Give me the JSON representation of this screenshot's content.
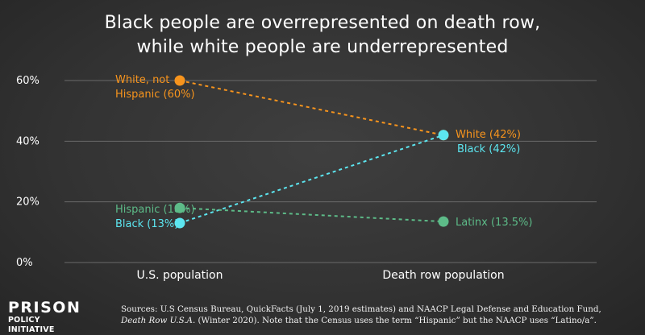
{
  "title_line1": "Black people are overrepresented on death row,",
  "title_line2": "while white people are underrepresented",
  "chart_data": {
    "type": "line",
    "title": "Black people are overrepresented on death row, while white people are underrepresented",
    "categories": [
      "U.S. population",
      "Death row population"
    ],
    "ylim": [
      0,
      60
    ],
    "yticks": [
      "0%",
      "20%",
      "40%",
      "60%"
    ],
    "ytick_values": [
      0,
      20,
      40,
      60
    ],
    "grid": true,
    "series": [
      {
        "color": "#f7941d",
        "values": [
          60,
          42
        ],
        "labels": [
          "White, not\nHispanic (60%)",
          "White (42%)"
        ]
      },
      {
        "color": "#5ce6f0",
        "values": [
          13,
          42
        ],
        "labels": [
          "Black (13%)",
          "Black (42%)"
        ]
      },
      {
        "color": "#5dbb88",
        "values": [
          18,
          13.5
        ],
        "labels": [
          "Hispanic (18%)",
          "Latinx (13.5%)"
        ]
      }
    ]
  },
  "logo": {
    "line1": "PRISON",
    "line2": "POLICY INITIATIVE"
  },
  "sources": {
    "line1": "Sources: U.S Census Bureau, QuickFacts (July 1, 2019 estimates) and NAACP Legal Defense and Education Fund,",
    "line2_italic": "Death Row U.S.A.",
    "line2_rest": " (Winter 2020). Note that the Census uses the term “Hispanic” but the NAACP uses “Latino/a”."
  },
  "colors": {
    "white": "#f7941d",
    "black": "#5ce6f0",
    "hispanic": "#5dbb88",
    "background": "#333333"
  }
}
